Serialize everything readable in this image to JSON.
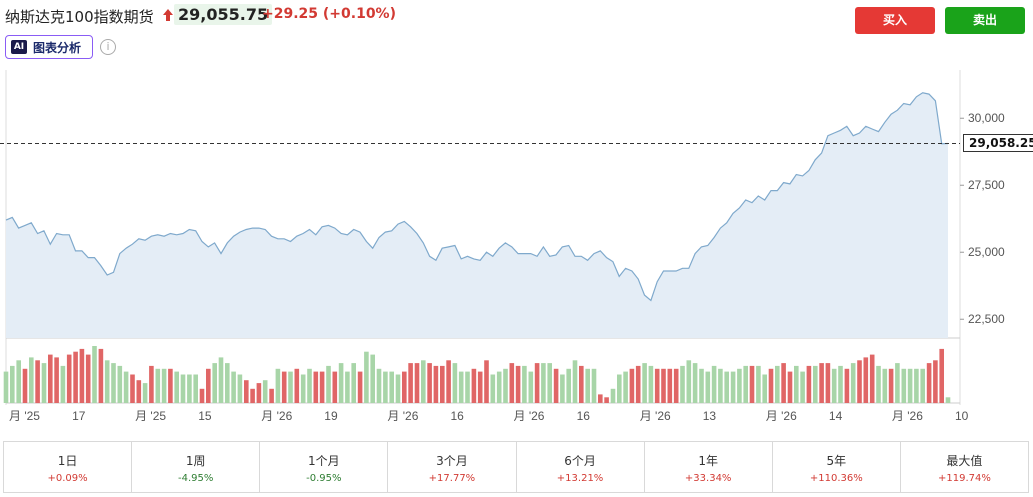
{
  "header": {
    "title": "纳斯达克100指数期货",
    "price": "29,055.75",
    "change": "+29.25 (+0.10%)",
    "buy_label": "买入",
    "sell_label": "卖出",
    "ai_badge": "AI",
    "ai_label": "图表分析",
    "info_symbol": "i"
  },
  "colors": {
    "up": "#d23a33",
    "down": "#2e7d32",
    "buy": "#e53935",
    "sell": "#1aa31a",
    "line": "#7fa9cc",
    "area": "#e4edf6",
    "vol_up": "#e06666",
    "vol_down": "#a8d5a8"
  },
  "chart_data": {
    "type": "area",
    "y_ticks": [
      "30,000",
      "27,500",
      "25,000",
      "22,500"
    ],
    "y_tick_values": [
      30000,
      27500,
      25000,
      22500
    ],
    "ylim": [
      21800,
      31800
    ],
    "current_price_label": "29,058.25",
    "current_price": 29058.25,
    "x_tick_labels": [
      "月 '25",
      "17",
      "月 '25",
      "15",
      "月 '26",
      "19",
      "月 '26",
      "16",
      "月 '26",
      "16",
      "月 '26",
      "13",
      "月 '26",
      "14",
      "月 '26",
      "10"
    ],
    "values": [
      26200,
      26300,
      25900,
      26000,
      26100,
      25700,
      25800,
      25300,
      25700,
      25650,
      25650,
      25050,
      25050,
      24800,
      24800,
      24500,
      24150,
      24250,
      24950,
      25150,
      25300,
      25500,
      25450,
      25600,
      25650,
      25600,
      25700,
      25650,
      25700,
      25850,
      25800,
      25400,
      25200,
      25350,
      24950,
      25350,
      25600,
      25750,
      25850,
      25900,
      25900,
      25850,
      25600,
      25500,
      25500,
      25400,
      25600,
      25700,
      25850,
      25650,
      25950,
      26000,
      25900,
      25700,
      25650,
      25850,
      25750,
      25400,
      25150,
      25550,
      25750,
      25800,
      26050,
      26150,
      25950,
      25700,
      25350,
      24850,
      24700,
      25150,
      25200,
      25250,
      24750,
      24850,
      24750,
      24700,
      25000,
      24850,
      25150,
      25350,
      25200,
      24950,
      24950,
      24950,
      24850,
      25200,
      24850,
      24900,
      25200,
      25250,
      24850,
      24850,
      24700,
      24950,
      25050,
      24800,
      24650,
      24100,
      24400,
      24300,
      24000,
      23400,
      23200,
      23900,
      24300,
      24300,
      24300,
      24400,
      24400,
      24950,
      25200,
      25250,
      25550,
      25900,
      26100,
      26450,
      26650,
      26950,
      26850,
      27100,
      26950,
      27300,
      27300,
      27600,
      27550,
      27900,
      27850,
      28050,
      28450,
      28700,
      29350,
      29450,
      29550,
      29700,
      29350,
      29450,
      29700,
      29600,
      29500,
      29850,
      30150,
      30300,
      30550,
      30500,
      30800,
      30950,
      30900,
      30650,
      29050,
      29058
    ],
    "volumes": [
      11,
      13,
      15,
      12,
      16,
      15,
      14,
      17,
      16,
      13,
      17,
      18,
      19,
      17,
      20,
      19,
      15,
      14,
      13,
      11,
      10,
      8,
      7,
      13,
      12,
      12,
      12,
      11,
      10,
      10,
      10,
      5,
      12,
      14,
      16,
      14,
      11,
      10,
      8,
      5,
      7,
      8,
      5,
      12,
      11,
      11,
      12,
      10,
      12,
      11,
      11,
      13,
      11,
      14,
      11,
      14,
      11,
      18,
      17,
      12,
      11,
      11,
      10,
      11,
      14,
      14,
      15,
      14,
      13,
      13,
      15,
      14,
      11,
      11,
      12,
      11,
      15,
      10,
      11,
      12,
      14,
      13,
      13,
      11,
      14,
      14,
      14,
      12,
      10,
      12,
      15,
      13,
      12,
      12,
      3,
      2,
      5,
      10,
      11,
      12,
      13,
      14,
      13,
      12,
      12,
      12,
      12,
      13,
      15,
      14,
      12,
      11,
      13,
      12,
      11,
      11,
      12,
      13,
      13,
      13,
      10,
      12,
      13,
      14,
      11,
      13,
      11,
      13,
      13,
      14,
      14,
      12,
      13,
      12,
      14,
      15,
      16,
      17,
      13,
      12,
      12,
      14,
      12,
      12,
      12,
      12,
      14,
      15,
      19,
      2
    ],
    "volume_up": [
      0,
      0,
      0,
      1,
      0,
      1,
      0,
      1,
      1,
      0,
      1,
      1,
      1,
      1,
      0,
      1,
      0,
      0,
      0,
      0,
      1,
      1,
      0,
      1,
      0,
      0,
      1,
      0,
      0,
      0,
      0,
      1,
      1,
      0,
      0,
      0,
      0,
      0,
      1,
      1,
      1,
      0,
      1,
      0,
      1,
      0,
      1,
      0,
      0,
      1,
      1,
      0,
      1,
      0,
      0,
      0,
      1,
      0,
      0,
      0,
      0,
      0,
      0,
      1,
      1,
      1,
      0,
      1,
      1,
      1,
      1,
      0,
      0,
      0,
      1,
      1,
      1,
      0,
      0,
      0,
      1,
      1,
      0,
      0,
      1,
      0,
      0,
      1,
      0,
      0,
      0,
      1,
      0,
      0,
      1,
      1,
      0,
      0,
      0,
      1,
      1,
      0,
      0,
      1,
      1,
      1,
      1,
      0,
      0,
      0,
      0,
      0,
      0,
      0,
      0,
      0,
      0,
      0,
      1,
      0,
      0,
      1,
      0,
      1,
      1,
      0,
      0,
      1,
      0,
      1,
      1,
      0,
      0,
      1,
      0,
      1,
      1,
      1,
      0,
      0,
      1,
      0,
      0,
      0,
      0,
      0,
      1,
      1,
      1,
      0
    ]
  },
  "periods": [
    {
      "name": "1日",
      "value": "+0.09%",
      "dir": "pos"
    },
    {
      "name": "1周",
      "value": "-4.95%",
      "dir": "neg"
    },
    {
      "name": "1个月",
      "value": "-0.95%",
      "dir": "neg"
    },
    {
      "name": "3个月",
      "value": "+17.77%",
      "dir": "pos"
    },
    {
      "name": "6个月",
      "value": "+13.21%",
      "dir": "pos"
    },
    {
      "name": "1年",
      "value": "+33.34%",
      "dir": "pos"
    },
    {
      "name": "5年",
      "value": "+110.36%",
      "dir": "pos"
    },
    {
      "name": "最大值",
      "value": "+119.74%",
      "dir": "pos"
    }
  ]
}
